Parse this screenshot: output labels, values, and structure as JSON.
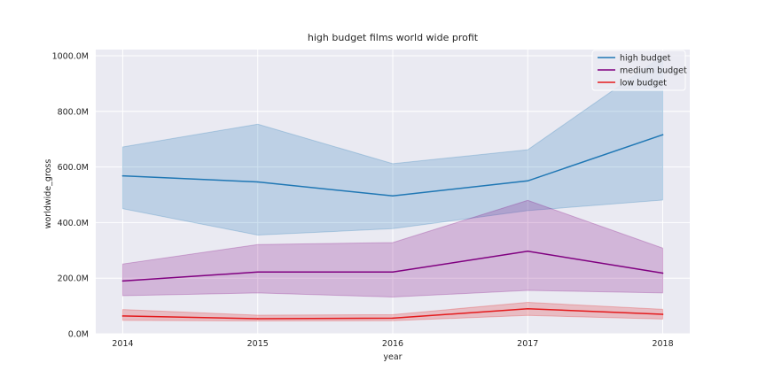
{
  "chart_data": {
    "type": "line",
    "title": "high budget films world wide profit",
    "xlabel": "year",
    "ylabel": "worldwide_gross",
    "x": [
      2014,
      2015,
      2016,
      2017,
      2018
    ],
    "ylim": [
      0,
      1000
    ],
    "yticks": [
      0,
      200,
      400,
      600,
      800,
      1000
    ],
    "ytick_labels": [
      "0.0M",
      "200.0M",
      "400.0M",
      "600.0M",
      "800.0M",
      "1000.0M"
    ],
    "xtick_labels": [
      "2014",
      "2015",
      "2016",
      "2017",
      "2018"
    ],
    "grid": true,
    "legend_position": "top-right",
    "series": [
      {
        "name": "high budget",
        "color": "#1f77b4",
        "values": [
          568,
          546,
          496,
          550,
          716
        ],
        "ci_lower": [
          450,
          355,
          378,
          443,
          481
        ],
        "ci_upper": [
          672,
          754,
          612,
          662,
          1000
        ]
      },
      {
        "name": "medium budget",
        "color": "#800080",
        "values": [
          190,
          222,
          222,
          297,
          218
        ],
        "ci_lower": [
          137,
          147,
          132,
          156,
          147
        ],
        "ci_upper": [
          251,
          321,
          328,
          480,
          308
        ]
      },
      {
        "name": "low budget",
        "color": "#e41a1c",
        "values": [
          64,
          54,
          56,
          90,
          70
        ],
        "ci_lower": [
          48,
          46,
          47,
          66,
          53
        ],
        "ci_upper": [
          87,
          67,
          69,
          113,
          88
        ]
      }
    ]
  }
}
